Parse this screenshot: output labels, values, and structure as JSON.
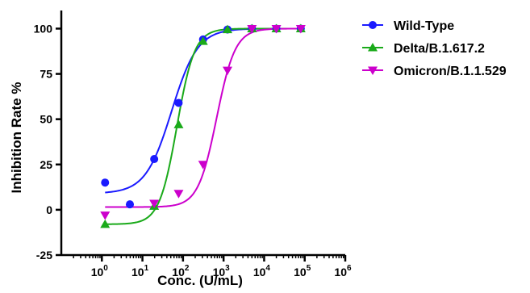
{
  "chart_data": {
    "type": "scatter",
    "xlabel": "Conc. (U/mL)",
    "ylabel": "Inhibition Rate %",
    "x_scale": "log10",
    "xlim": [
      0.1,
      1000000
    ],
    "ylim": [
      -25,
      110
    ],
    "x_ticks": [
      {
        "value": 1,
        "base": "10",
        "exp": "0"
      },
      {
        "value": 10,
        "base": "10",
        "exp": "1"
      },
      {
        "value": 100,
        "base": "10",
        "exp": "2"
      },
      {
        "value": 1000,
        "base": "10",
        "exp": "3"
      },
      {
        "value": 10000,
        "base": "10",
        "exp": "4"
      },
      {
        "value": 100000,
        "base": "10",
        "exp": "5"
      },
      {
        "value": 1000000,
        "base": "10",
        "exp": "6"
      }
    ],
    "y_ticks": [
      {
        "value": -25,
        "label": "-25"
      },
      {
        "value": 0,
        "label": "0"
      },
      {
        "value": 25,
        "label": "25"
      },
      {
        "value": 50,
        "label": "50"
      },
      {
        "value": 75,
        "label": "75"
      },
      {
        "value": 100,
        "label": "100"
      }
    ],
    "legend_position": "top-right outside",
    "series": [
      {
        "name": "Wild-Type",
        "color": "#1a1aff",
        "marker": "circle",
        "points": [
          {
            "x": 1.2,
            "y": 15
          },
          {
            "x": 4.9,
            "y": 3
          },
          {
            "x": 19.5,
            "y": 28
          },
          {
            "x": 78,
            "y": 59
          },
          {
            "x": 312,
            "y": 94
          },
          {
            "x": 1250,
            "y": 99.5
          },
          {
            "x": 5000,
            "y": 100
          },
          {
            "x": 20000,
            "y": 100
          },
          {
            "x": 80000,
            "y": 100
          }
        ],
        "fit": {
          "bottom": 9,
          "top": 100,
          "logEC50": 1.72,
          "hill": 1.35
        }
      },
      {
        "name": "Delta/B.1.617.2",
        "color": "#1aaa1a",
        "marker": "triangle-up",
        "points": [
          {
            "x": 1.2,
            "y": -8
          },
          {
            "x": 19.5,
            "y": 2
          },
          {
            "x": 78,
            "y": 47
          },
          {
            "x": 312,
            "y": 93
          },
          {
            "x": 1250,
            "y": 99.5
          },
          {
            "x": 5000,
            "y": 100
          },
          {
            "x": 20000,
            "y": 100
          },
          {
            "x": 80000,
            "y": 100
          }
        ],
        "fit": {
          "bottom": -8,
          "top": 100,
          "logEC50": 1.85,
          "hill": 2.0
        }
      },
      {
        "name": "Omicron/B.1.1.529",
        "color": "#cc00cc",
        "marker": "triangle-down",
        "points": [
          {
            "x": 1.2,
            "y": -3
          },
          {
            "x": 19.5,
            "y": 3.5
          },
          {
            "x": 78,
            "y": 9
          },
          {
            "x": 312,
            "y": 25
          },
          {
            "x": 1250,
            "y": 77
          },
          {
            "x": 5000,
            "y": 100
          },
          {
            "x": 20000,
            "y": 100
          },
          {
            "x": 80000,
            "y": 100
          }
        ],
        "fit": {
          "bottom": 1.5,
          "top": 100,
          "logEC50": 2.83,
          "hill": 1.9
        }
      }
    ]
  }
}
